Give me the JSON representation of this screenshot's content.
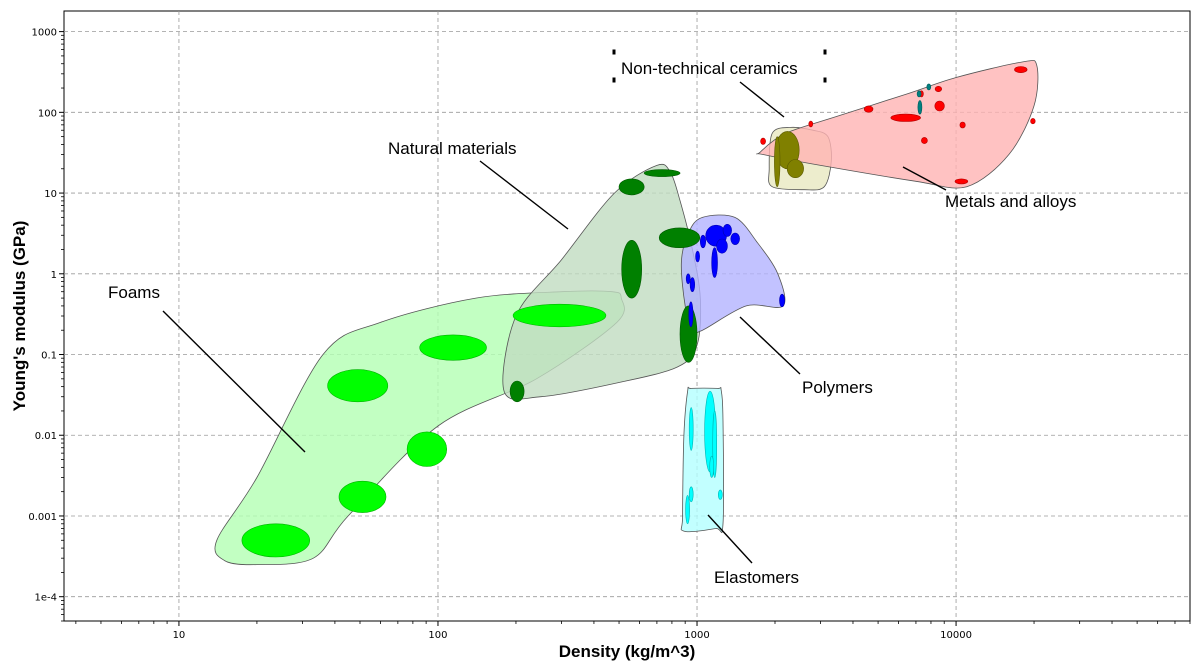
{
  "chart_data": {
    "type": "scatter",
    "title": "",
    "xlabel": "Density (kg/m^3)",
    "ylabel": "Young's modulus (GPa)",
    "xscale": "log",
    "yscale": "log",
    "xlim": [
      3.6,
      80000
    ],
    "ylim": [
      5e-05,
      1800
    ],
    "grid": true,
    "x_ticks": [
      {
        "value": 10,
        "label": "10"
      },
      {
        "value": 100,
        "label": "100"
      },
      {
        "value": 1000,
        "label": "1000"
      },
      {
        "value": 10000,
        "label": "10000"
      }
    ],
    "y_ticks": [
      {
        "value": 0.0001,
        "label": "1e-4"
      },
      {
        "value": 0.001,
        "label": "0.001"
      },
      {
        "value": 0.01,
        "label": "0.01"
      },
      {
        "value": 0.1,
        "label": "0.1"
      },
      {
        "value": 1,
        "label": "1"
      },
      {
        "value": 10,
        "label": "10"
      },
      {
        "value": 100,
        "label": "100"
      },
      {
        "value": 1000,
        "label": "1000"
      }
    ],
    "groups": [
      {
        "name": "Foams",
        "color": "#00ff00",
        "envelope_fill": "#b3ffb3",
        "envelope": [
          [
            36,
            0.1
          ],
          [
            60,
            0.25
          ],
          [
            140,
            0.5
          ],
          [
            300,
            0.6
          ],
          [
            470,
            0.6
          ],
          [
            510,
            0.5
          ],
          [
            490,
            0.25
          ],
          [
            240,
            0.05
          ],
          [
            100,
            0.013
          ],
          [
            45,
            0.001
          ],
          [
            33,
            0.0003
          ],
          [
            20,
            0.00025
          ],
          [
            15,
            0.00028
          ],
          [
            14,
            0.0005
          ],
          [
            20,
            0.003
          ],
          [
            36,
            0.1
          ]
        ],
        "members": [
          {
            "x": 23.5,
            "y": 0.0005,
            "x_range": [
              17.5,
              32
            ],
            "y_range": [
              0.00031,
              0.0008
            ]
          },
          {
            "x": 51,
            "y": 0.0017,
            "x_range": [
              41.5,
              63
            ],
            "y_range": [
              0.0011,
              0.0027
            ]
          },
          {
            "x": 91,
            "y": 0.0068,
            "x_range": [
              76,
              108
            ],
            "y_range": [
              0.0041,
              0.011
            ]
          },
          {
            "x": 49.5,
            "y": 0.041,
            "x_range": [
              37.5,
              64
            ],
            "y_range": [
              0.026,
              0.065
            ]
          },
          {
            "x": 114,
            "y": 0.12,
            "x_range": [
              85,
              154
            ],
            "y_range": [
              0.085,
              0.175
            ]
          },
          {
            "x": 292,
            "y": 0.3,
            "x_range": [
              195,
              445
            ],
            "y_range": [
              0.22,
              0.42
            ]
          }
        ]
      },
      {
        "name": "Natural materials",
        "color": "#008000",
        "envelope_fill": "#c0dcc0",
        "envelope": [
          [
            180,
            0.035
          ],
          [
            200,
            0.3
          ],
          [
            300,
            1.5
          ],
          [
            480,
            10
          ],
          [
            700,
            22
          ],
          [
            790,
            18
          ],
          [
            860,
            8
          ],
          [
            960,
            2
          ],
          [
            1030,
            0.5
          ],
          [
            1000,
            0.13
          ],
          [
            840,
            0.07
          ],
          [
            500,
            0.045
          ],
          [
            250,
            0.03
          ],
          [
            180,
            0.035
          ]
        ],
        "members": [
          {
            "x": 202,
            "y": 0.035,
            "x_range": [
              190,
              215
            ],
            "y_range": [
              0.026,
              0.047
            ]
          },
          {
            "x": 560,
            "y": 1.15,
            "x_range": [
              512,
              612
            ],
            "y_range": [
              0.5,
              2.6
            ]
          },
          {
            "x": 562,
            "y": 12,
            "x_range": [
              500,
              625
            ],
            "y_range": [
              9.5,
              15
            ]
          },
          {
            "x": 732,
            "y": 17.5,
            "x_range": [
              625,
              860
            ],
            "y_range": [
              16,
              19.5
            ]
          },
          {
            "x": 855,
            "y": 2.8,
            "x_range": [
              715,
              1025
            ],
            "y_range": [
              2.1,
              3.7
            ]
          },
          {
            "x": 925,
            "y": 0.19,
            "x_range": [
              860,
              1000
            ],
            "y_range": [
              0.08,
              0.4
            ]
          }
        ]
      },
      {
        "name": "Polymers",
        "color": "#0000ff",
        "envelope_fill": "#b3b3ff",
        "envelope": [
          [
            960,
            0.2
          ],
          [
            1050,
            0.2
          ],
          [
            1550,
            0.4
          ],
          [
            2150,
            0.4
          ],
          [
            2050,
            1.0
          ],
          [
            1700,
            2.5
          ],
          [
            1400,
            5.0
          ],
          [
            1050,
            5.0
          ],
          [
            930,
            3.3
          ],
          [
            870,
            1.4
          ],
          [
            900,
            0.4
          ],
          [
            960,
            0.2
          ]
        ],
        "members": [
          {
            "x": 948,
            "y": 0.3,
            "x_range": [
              930,
              965
            ],
            "y_range": [
              0.22,
              0.45
            ]
          },
          {
            "x": 925,
            "y": 0.86,
            "x_range": [
              910,
              940
            ],
            "y_range": [
              0.75,
              1.0
            ]
          },
          {
            "x": 960,
            "y": 0.73,
            "x_range": [
              940,
              980
            ],
            "y_range": [
              0.6,
              0.9
            ]
          },
          {
            "x": 1005,
            "y": 1.6,
            "x_range": [
              990,
              1020
            ],
            "y_range": [
              1.4,
              1.9
            ]
          },
          {
            "x": 1055,
            "y": 2.5,
            "x_range": [
              1030,
              1080
            ],
            "y_range": [
              2.1,
              3.0
            ]
          },
          {
            "x": 1170,
            "y": 1.4,
            "x_range": [
              1140,
              1200
            ],
            "y_range": [
              0.9,
              2.1
            ]
          },
          {
            "x": 1180,
            "y": 3.0,
            "x_range": [
              1080,
              1300
            ],
            "y_range": [
              2.2,
              4.0
            ]
          },
          {
            "x": 1250,
            "y": 2.2,
            "x_range": [
              1190,
              1310
            ],
            "y_range": [
              1.8,
              2.7
            ]
          },
          {
            "x": 1310,
            "y": 3.4,
            "x_range": [
              1260,
              1360
            ],
            "y_range": [
              2.9,
              4.1
            ]
          },
          {
            "x": 1400,
            "y": 2.7,
            "x_range": [
              1350,
              1460
            ],
            "y_range": [
              2.3,
              3.2
            ]
          },
          {
            "x": 2130,
            "y": 0.46,
            "x_range": [
              2080,
              2180
            ],
            "y_range": [
              0.39,
              0.56
            ]
          }
        ]
      },
      {
        "name": "Elastomers",
        "color": "#00ffff",
        "envelope_fill": "#b3ffff",
        "envelope": [
          [
            950,
            0.038
          ],
          [
            1200,
            0.038
          ],
          [
            1240,
            0.036
          ],
          [
            1260,
            0.015
          ],
          [
            1260,
            0.0008
          ],
          [
            1180,
            0.0007
          ],
          [
            890,
            0.00065
          ],
          [
            880,
            0.001
          ],
          [
            890,
            0.01
          ],
          [
            920,
            0.035
          ],
          [
            950,
            0.038
          ]
        ],
        "members": [
          {
            "x": 950,
            "y": 0.012,
            "x_range": [
              935,
              965
            ],
            "y_range": [
              0.0065,
              0.022
            ]
          },
          {
            "x": 1120,
            "y": 0.014,
            "x_range": [
              1070,
              1180
            ],
            "y_range": [
              0.0035,
              0.035
            ]
          },
          {
            "x": 1170,
            "y": 0.008,
            "x_range": [
              1150,
              1190
            ],
            "y_range": [
              0.003,
              0.02
            ]
          },
          {
            "x": 1140,
            "y": 0.004,
            "x_range": [
              1120,
              1160
            ],
            "y_range": [
              0.003,
              0.0055
            ]
          },
          {
            "x": 950,
            "y": 0.0019,
            "x_range": [
              935,
              965
            ],
            "y_range": [
              0.0015,
              0.0023
            ]
          },
          {
            "x": 920,
            "y": 0.0012,
            "x_range": [
              905,
              935
            ],
            "y_range": [
              0.0008,
              0.0018
            ]
          },
          {
            "x": 1230,
            "y": 0.0018,
            "x_range": [
              1210,
              1250
            ],
            "y_range": [
              0.0016,
              0.0021
            ]
          }
        ]
      },
      {
        "name": "Non-technical ceramics",
        "color": "#808000",
        "envelope_fill": "#e8e8c0",
        "envelope": [
          [
            1950,
            12
          ],
          [
            2600,
            11
          ],
          [
            3100,
            12
          ],
          [
            3300,
            25
          ],
          [
            3200,
            50
          ],
          [
            2800,
            60
          ],
          [
            2300,
            65
          ],
          [
            1950,
            55
          ],
          [
            1900,
            20
          ],
          [
            1950,
            12
          ]
        ],
        "members": [
          {
            "x": 2240,
            "y": 35,
            "x_range": [
              2010,
              2480
            ],
            "y_range": [
              20,
              58
            ]
          },
          {
            "x": 2400,
            "y": 20,
            "x_range": [
              2230,
              2580
            ],
            "y_range": [
              15.5,
              26
            ]
          },
          {
            "x": 2040,
            "y": 25,
            "x_range": [
              1990,
              2090
            ],
            "y_range": [
              12,
              50
            ]
          }
        ]
      },
      {
        "name": "Metals and alloys",
        "color": "#ff0000",
        "envelope_fill": "#ffb3b3",
        "envelope": [
          [
            1750,
            32
          ],
          [
            2200,
            55
          ],
          [
            3500,
            90
          ],
          [
            6500,
            170
          ],
          [
            10000,
            270
          ],
          [
            18000,
            420
          ],
          [
            20500,
            380
          ],
          [
            20000,
            120
          ],
          [
            16000,
            30
          ],
          [
            11000,
            12
          ],
          [
            7000,
            14
          ],
          [
            3000,
            22
          ],
          [
            1800,
            30
          ],
          [
            1750,
            32
          ]
        ],
        "members": [
          {
            "x": 1800,
            "y": 44,
            "x_range": [
              1760,
              1840
            ],
            "y_range": [
              40,
              48
            ]
          },
          {
            "x": 2750,
            "y": 72,
            "x_range": [
              2700,
              2800
            ],
            "y_range": [
              66,
              78
            ]
          },
          {
            "x": 4600,
            "y": 110,
            "x_range": [
              4420,
              4780
            ],
            "y_range": [
              100,
              120
            ]
          },
          {
            "x": 7350,
            "y": 170,
            "x_range": [
              7250,
              7450
            ],
            "y_range": [
              155,
              185
            ]
          },
          {
            "x": 7550,
            "y": 45,
            "x_range": [
              7350,
              7750
            ],
            "y_range": [
              41,
              49
            ]
          },
          {
            "x": 6400,
            "y": 85,
            "x_range": [
              5600,
              7300
            ],
            "y_range": [
              77,
              95
            ]
          },
          {
            "x": 8650,
            "y": 120,
            "x_range": [
              8280,
              9020
            ],
            "y_range": [
              104,
              138
            ]
          },
          {
            "x": 8550,
            "y": 195,
            "x_range": [
              8300,
              8800
            ],
            "y_range": [
              180,
              210
            ]
          },
          {
            "x": 10600,
            "y": 70,
            "x_range": [
              10350,
              10850
            ],
            "y_range": [
              64,
              76
            ]
          },
          {
            "x": 10500,
            "y": 14,
            "x_range": [
              9900,
              11100
            ],
            "y_range": [
              13,
              15
            ]
          },
          {
            "x": 17800,
            "y": 340,
            "x_range": [
              16800,
              18800
            ],
            "y_range": [
              310,
              370
            ]
          },
          {
            "x": 19800,
            "y": 78,
            "x_range": [
              19400,
              20200
            ],
            "y_range": [
              72,
              84
            ]
          }
        ]
      },
      {
        "name": "",
        "color": "#008080",
        "envelope_fill": "",
        "envelope": [],
        "members": [
          {
            "x": 7850,
            "y": 210,
            "x_range": [
              7750,
              7950
            ],
            "y_range": [
              190,
              225
            ]
          },
          {
            "x": 7250,
            "y": 115,
            "x_range": [
              7120,
              7380
            ],
            "y_range": [
              95,
              140
            ]
          },
          {
            "x": 7200,
            "y": 170,
            "x_range": [
              7090,
              7310
            ],
            "y_range": [
              155,
              185
            ]
          }
        ]
      }
    ],
    "annotations": [
      {
        "text": "Foams",
        "target": "Foams"
      },
      {
        "text": "Natural materials",
        "target": "Natural materials"
      },
      {
        "text": "Polymers",
        "target": "Polymers"
      },
      {
        "text": "Elastomers",
        "target": "Elastomers"
      },
      {
        "text": "Non-technical ceramics",
        "target": "Non-technical ceramics"
      },
      {
        "text": "Metals and alloys",
        "target": "Metals and alloys"
      }
    ]
  }
}
